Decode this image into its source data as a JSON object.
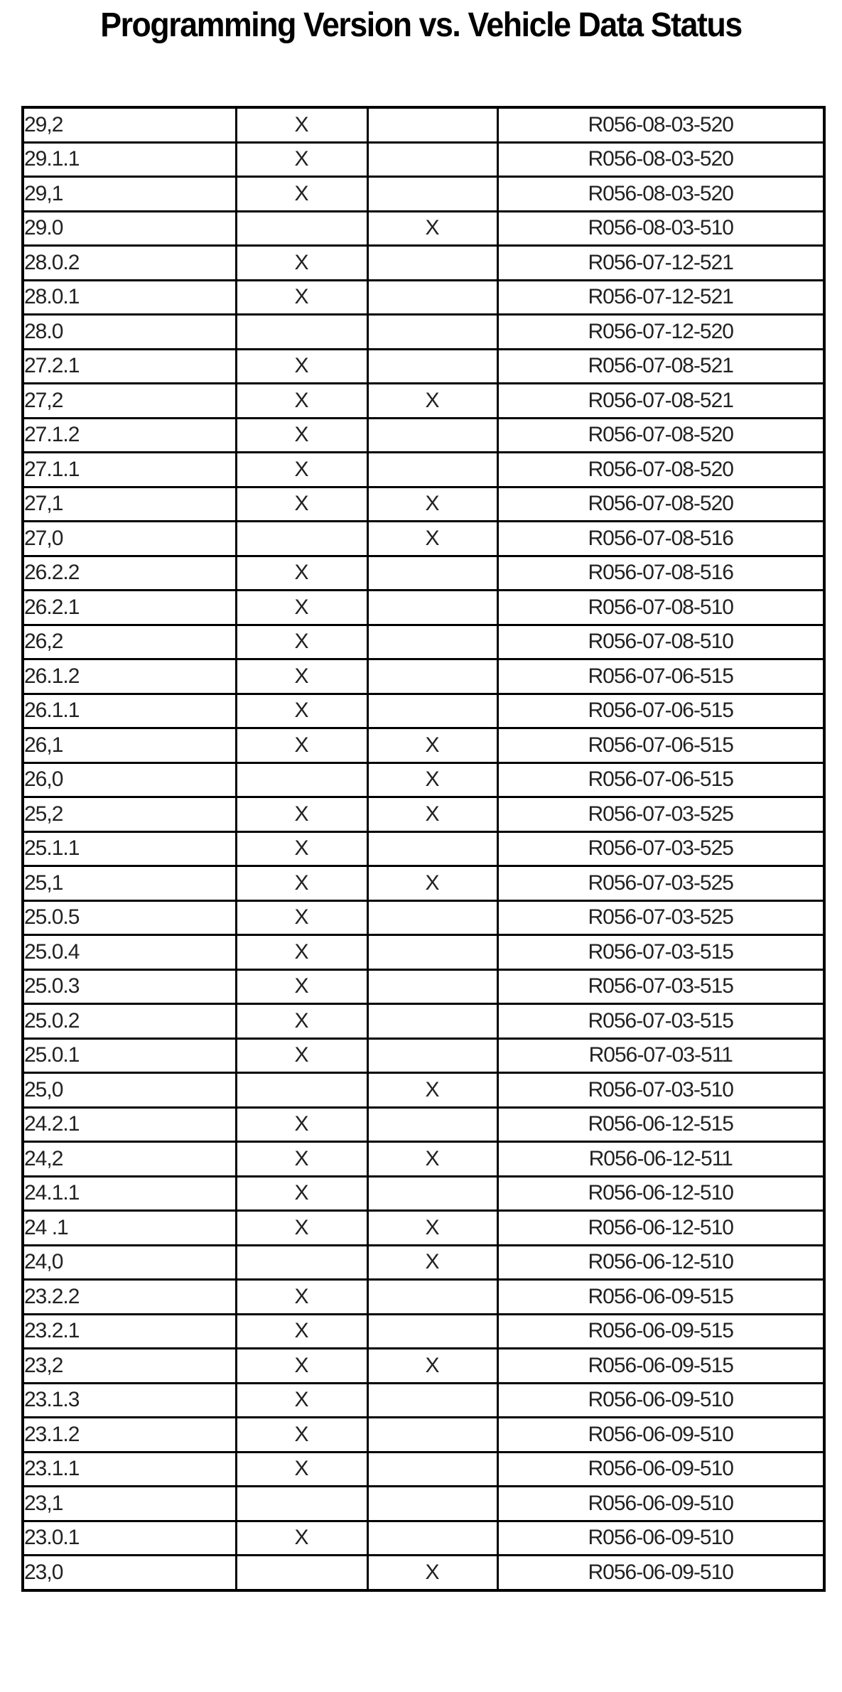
{
  "title": "Programming Version vs. Vehicle Data Status",
  "rows": [
    {
      "version": "29,2",
      "col2": "X",
      "col3": "",
      "code": "R056-08-03-520"
    },
    {
      "version": "29.1.1",
      "col2": "X",
      "col3": "",
      "code": "R056-08-03-520"
    },
    {
      "version": "29,1",
      "col2": "X",
      "col3": "",
      "code": "R056-08-03-520"
    },
    {
      "version": "29.0",
      "col2": "",
      "col3": "X",
      "code": "R056-08-03-510"
    },
    {
      "version": "28.0.2",
      "col2": "X",
      "col3": "",
      "code": "R056-07-12-521"
    },
    {
      "version": "28.0.1",
      "col2": "X",
      "col3": "",
      "code": "R056-07-12-521"
    },
    {
      "version": "28.0",
      "col2": "",
      "col3": "",
      "code": "R056-07-12-520"
    },
    {
      "version": "27.2.1",
      "col2": "X",
      "col3": "",
      "code": "R056-07-08-521"
    },
    {
      "version": "27,2",
      "col2": "X",
      "col3": "X",
      "code": "R056-07-08-521"
    },
    {
      "version": "27.1.2",
      "col2": "X",
      "col3": "",
      "code": "R056-07-08-520"
    },
    {
      "version": "27.1.1",
      "col2": "X",
      "col3": "",
      "code": "R056-07-08-520"
    },
    {
      "version": "27,1",
      "col2": "X",
      "col3": "X",
      "code": "R056-07-08-520"
    },
    {
      "version": "27,0",
      "col2": "",
      "col3": "X",
      "code": "R056-07-08-516"
    },
    {
      "version": "26.2.2",
      "col2": "X",
      "col3": "",
      "code": "R056-07-08-516"
    },
    {
      "version": "26.2.1",
      "col2": "X",
      "col3": "",
      "code": "R056-07-08-510"
    },
    {
      "version": "26,2",
      "col2": "X",
      "col3": "",
      "code": "R056-07-08-510"
    },
    {
      "version": "26.1.2",
      "col2": "X",
      "col3": "",
      "code": "R056-07-06-515"
    },
    {
      "version": "26.1.1",
      "col2": "X",
      "col3": "",
      "code": "R056-07-06-515"
    },
    {
      "version": "26,1",
      "col2": "X",
      "col3": "X",
      "code": "R056-07-06-515"
    },
    {
      "version": "26,0",
      "col2": "",
      "col3": "X",
      "code": "R056-07-06-515"
    },
    {
      "version": "25,2",
      "col2": "X",
      "col3": "X",
      "code": "R056-07-03-525"
    },
    {
      "version": "25.1.1",
      "col2": "X",
      "col3": "",
      "code": "R056-07-03-525"
    },
    {
      "version": "25,1",
      "col2": "X",
      "col3": "X",
      "code": "R056-07-03-525"
    },
    {
      "version": "25.0.5",
      "col2": "X",
      "col3": "",
      "code": "R056-07-03-525"
    },
    {
      "version": "25.0.4",
      "col2": "X",
      "col3": "",
      "code": "R056-07-03-515"
    },
    {
      "version": "25.0.3",
      "col2": "X",
      "col3": "",
      "code": "R056-07-03-515"
    },
    {
      "version": "25.0.2",
      "col2": "X",
      "col3": "",
      "code": "R056-07-03-515"
    },
    {
      "version": "25.0.1",
      "col2": "X",
      "col3": "",
      "code": "R056-07-03-511"
    },
    {
      "version": "25,0",
      "col2": "",
      "col3": "X",
      "code": "R056-07-03-510"
    },
    {
      "version": "24.2.1",
      "col2": "X",
      "col3": "",
      "code": "R056-06-12-515"
    },
    {
      "version": "24,2",
      "col2": "X",
      "col3": "X",
      "code": "R056-06-12-511"
    },
    {
      "version": "24.1.1",
      "col2": "X",
      "col3": "",
      "code": "R056-06-12-510"
    },
    {
      "version": "24 .1",
      "col2": "X",
      "col3": "X",
      "code": "R056-06-12-510"
    },
    {
      "version": "24,0",
      "col2": "",
      "col3": "X",
      "code": "R056-06-12-510"
    },
    {
      "version": "23.2.2",
      "col2": "X",
      "col3": "",
      "code": "R056-06-09-515"
    },
    {
      "version": "23.2.1",
      "col2": "X",
      "col3": "",
      "code": "R056-06-09-515"
    },
    {
      "version": "23,2",
      "col2": "X",
      "col3": "X",
      "code": "R056-06-09-515"
    },
    {
      "version": "23.1.3",
      "col2": "X",
      "col3": "",
      "code": "R056-06-09-510"
    },
    {
      "version": "23.1.2",
      "col2": "X",
      "col3": "",
      "code": "R056-06-09-510"
    },
    {
      "version": "23.1.1",
      "col2": "X",
      "col3": "",
      "code": "R056-06-09-510"
    },
    {
      "version": "23,1",
      "col2": "",
      "col3": "",
      "code": "R056-06-09-510"
    },
    {
      "version": "23.0.1",
      "col2": "X",
      "col3": "",
      "code": "R056-06-09-510"
    },
    {
      "version": "23,0",
      "col2": "",
      "col3": "X",
      "code": "R056-06-09-510"
    }
  ]
}
